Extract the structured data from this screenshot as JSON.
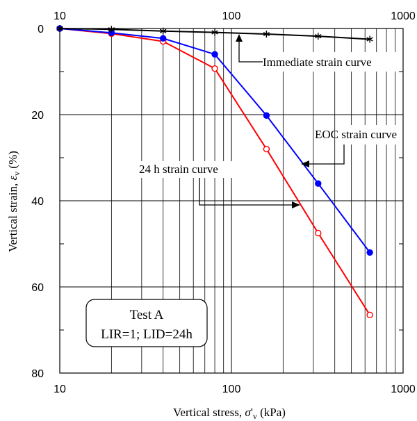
{
  "chart_data": {
    "type": "line",
    "x_scale": "log",
    "xlim": [
      10,
      1000
    ],
    "ylim": [
      0,
      80
    ],
    "y_inverted": true,
    "grid": true,
    "x_ticks": [
      "10",
      "100",
      "1000"
    ],
    "y_ticks": [
      "0",
      "20",
      "40",
      "60",
      "80"
    ],
    "xlabel": "Vertical stress, σ'v (kPa)",
    "ylabel": "Vertical strain, εv (%)",
    "series": [
      {
        "key": "immediate",
        "color": "#000000",
        "marker": "asterisk",
        "x": [
          10,
          20,
          40,
          80,
          160,
          320,
          640
        ],
        "y": [
          0,
          0.2,
          0.6,
          0.9,
          1.3,
          1.8,
          2.5
        ]
      },
      {
        "key": "eoc",
        "color": "#0000ff",
        "marker": "filled-circle",
        "x": [
          10,
          20,
          40,
          80,
          160,
          320,
          640
        ],
        "y": [
          0,
          1,
          2.3,
          6,
          20.2,
          36,
          52
        ]
      },
      {
        "key": "h24",
        "color": "#ff0000",
        "marker": "open-circle",
        "x": [
          10,
          20,
          40,
          80,
          160,
          320,
          640
        ],
        "y": [
          0,
          1.2,
          3,
          9.3,
          28,
          47.5,
          66.5
        ]
      }
    ],
    "annotations": {
      "immediate": "Immediate strain curve",
      "eoc": "EOC strain curve",
      "h24": "24 h strain curve"
    },
    "text_box": {
      "line1": "Test A",
      "line2": "LIR=1; LID=24h"
    }
  }
}
